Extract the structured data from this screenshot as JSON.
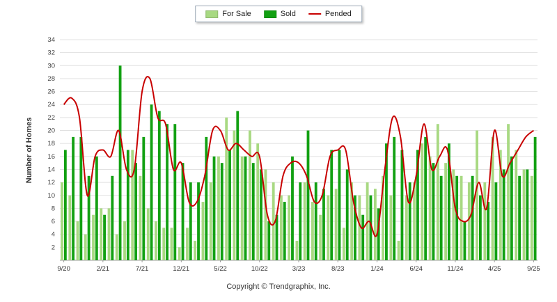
{
  "footer": {
    "copyright": "Copyright © Trendgraphix, Inc."
  },
  "chart_data": {
    "type": "bar",
    "title": "",
    "ylabel": "Number of Homes",
    "xlabel": "",
    "ylim": [
      0,
      34
    ],
    "ytick_step": 2,
    "grid": true,
    "legend_position": "top-center",
    "x_tick_every": 5,
    "categories": [
      "9/20",
      "10/20",
      "11/20",
      "12/20",
      "1/21",
      "2/21",
      "3/21",
      "4/21",
      "5/21",
      "6/21",
      "7/21",
      "8/21",
      "9/21",
      "10/21",
      "11/21",
      "12/21",
      "1/22",
      "2/22",
      "3/22",
      "4/22",
      "5/22",
      "6/22",
      "7/22",
      "8/22",
      "9/22",
      "10/22",
      "11/22",
      "12/22",
      "1/23",
      "2/23",
      "3/23",
      "4/23",
      "5/23",
      "6/23",
      "7/23",
      "8/23",
      "9/23",
      "10/23",
      "11/23",
      "12/23",
      "1/24",
      "2/24",
      "3/24",
      "4/24",
      "5/24",
      "6/24",
      "7/24",
      "8/24",
      "9/24",
      "10/24",
      "11/24",
      "12/24",
      "1/25",
      "2/25",
      "3/25",
      "4/25",
      "5/25",
      "6/25",
      "7/25",
      "8/25",
      "9/25"
    ],
    "series": [
      {
        "name": "For Sale",
        "type": "bar",
        "color": "#a8d982",
        "values": [
          12,
          10,
          6,
          4,
          7,
          8,
          8,
          4,
          6,
          17,
          13,
          8,
          6,
          5,
          5,
          2,
          5,
          3,
          9,
          12,
          16,
          22,
          20,
          16,
          20,
          18,
          14,
          12,
          10,
          10,
          3,
          12,
          9,
          7,
          10,
          11,
          5,
          12,
          10,
          12,
          11,
          13,
          10,
          3,
          10,
          12,
          18,
          16,
          21,
          15,
          14,
          13,
          12,
          20,
          12,
          19,
          17,
          21,
          17,
          14,
          13
        ]
      },
      {
        "name": "Sold",
        "type": "bar",
        "color": "#12a012",
        "values": [
          17,
          19,
          19,
          13,
          16,
          7,
          13,
          30,
          17,
          15,
          19,
          24,
          23,
          21,
          21,
          15,
          12,
          12,
          19,
          16,
          15,
          17,
          23,
          16,
          15,
          14,
          6,
          7,
          9,
          16,
          12,
          20,
          12,
          11,
          17,
          17,
          14,
          10,
          7,
          10,
          8,
          18,
          19,
          17,
          12,
          17,
          19,
          15,
          13,
          18,
          13,
          6,
          13,
          10,
          9,
          12,
          14,
          16,
          13,
          14,
          19
        ]
      },
      {
        "name": "Pended",
        "type": "line",
        "color": "#c80000",
        "values": [
          24,
          25,
          22,
          10,
          16,
          17,
          16,
          20,
          14,
          14,
          26,
          28,
          22,
          21,
          14,
          15,
          9,
          9,
          13,
          20,
          20,
          17,
          18,
          17,
          16,
          16,
          7,
          6,
          13,
          15,
          15,
          13,
          9,
          10,
          16,
          17,
          17,
          9,
          5,
          6,
          4,
          14,
          22,
          19,
          9,
          13,
          21,
          14,
          16,
          17,
          8,
          6,
          7,
          12,
          8,
          20,
          13,
          15,
          17,
          19,
          20
        ]
      }
    ]
  }
}
